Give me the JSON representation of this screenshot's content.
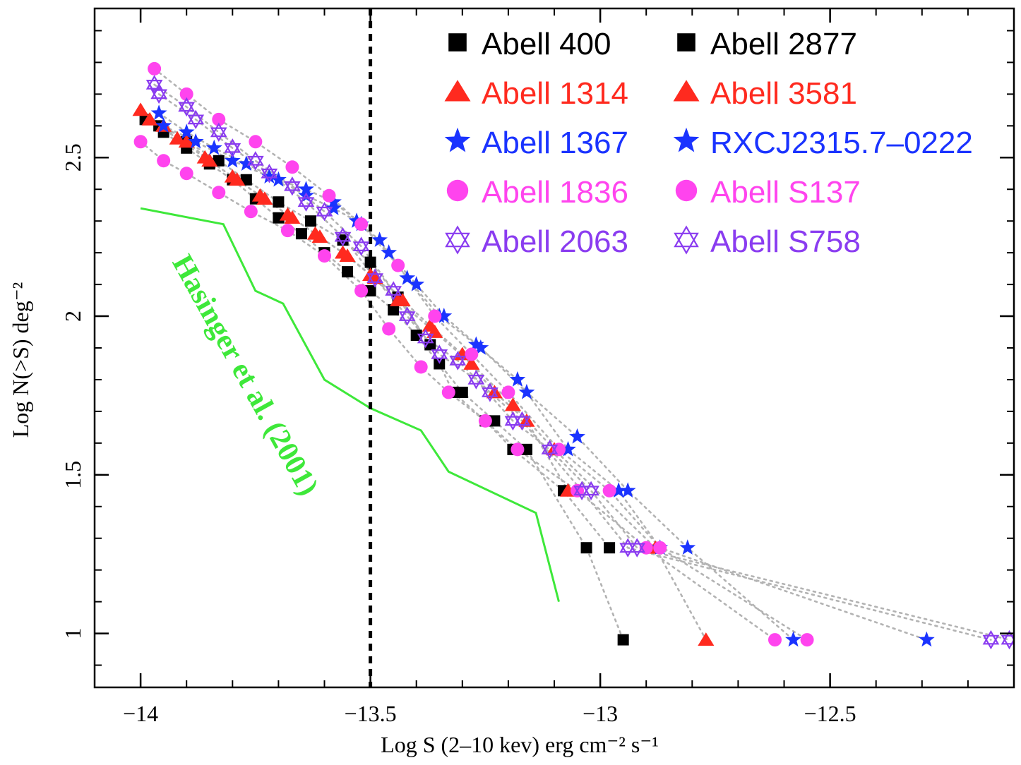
{
  "chart_data": {
    "type": "scatter",
    "title": "",
    "xlabel": "Log S (2–10 kev) erg cm⁻² s⁻¹",
    "ylabel": "Log N(>S) deg⁻²",
    "xlim": [
      -14.1,
      -12.1
    ],
    "ylim": [
      0.83,
      2.97
    ],
    "xticks": [
      -14,
      -13.5,
      -13,
      -12.5
    ],
    "xtick_labels": [
      "−14",
      "−13.5",
      "−13",
      "−12.5"
    ],
    "yticks": [
      1,
      1.5,
      2,
      2.5
    ],
    "ytick_labels": [
      "1",
      "1.5",
      "2",
      "2.5"
    ],
    "legend_position": "top-right",
    "series": [
      {
        "name": "Abell 400",
        "marker": "square",
        "color": "#000000",
        "x": [
          -13.99,
          -13.95,
          -13.9,
          -13.85,
          -13.8,
          -13.75,
          -13.7,
          -13.65,
          -13.6,
          -13.55,
          -13.5,
          -13.45,
          -13.4,
          -13.35,
          -13.3,
          -13.23,
          -13.16,
          -13.03,
          -12.95
        ],
        "y": [
          2.62,
          2.58,
          2.53,
          2.48,
          2.43,
          2.37,
          2.31,
          2.26,
          2.2,
          2.14,
          2.08,
          2.02,
          1.94,
          1.85,
          1.76,
          1.67,
          1.58,
          1.27,
          0.98
        ]
      },
      {
        "name": "Abell 2877",
        "marker": "square",
        "color": "#000000",
        "x": [
          -13.96,
          -13.9,
          -13.83,
          -13.77,
          -13.7,
          -13.63,
          -13.56,
          -13.5,
          -13.44,
          -13.37,
          -13.32,
          -13.25,
          -13.19,
          -13.08,
          -12.98
        ],
        "y": [
          2.6,
          2.55,
          2.49,
          2.43,
          2.36,
          2.3,
          2.24,
          2.17,
          2.06,
          1.91,
          1.76,
          1.67,
          1.58,
          1.45,
          1.27
        ]
      },
      {
        "name": "Abell 1314",
        "marker": "triangle",
        "color": "#ff2a1f",
        "x": [
          -14.0,
          -13.95,
          -13.9,
          -13.85,
          -13.79,
          -13.73,
          -13.67,
          -13.61,
          -13.55,
          -13.49,
          -13.43,
          -13.37,
          -13.3,
          -13.23,
          -13.16,
          -13.07
        ],
        "y": [
          2.65,
          2.6,
          2.55,
          2.49,
          2.43,
          2.37,
          2.31,
          2.25,
          2.19,
          2.12,
          2.05,
          1.97,
          1.88,
          1.76,
          1.67,
          1.45
        ]
      },
      {
        "name": "Abell 3581",
        "marker": "triangle",
        "color": "#ff2a1f",
        "x": [
          -13.98,
          -13.92,
          -13.86,
          -13.8,
          -13.74,
          -13.68,
          -13.62,
          -13.56,
          -13.5,
          -13.44,
          -13.36,
          -13.28,
          -13.19,
          -13.1,
          -12.88,
          -12.77
        ],
        "y": [
          2.62,
          2.56,
          2.5,
          2.44,
          2.38,
          2.32,
          2.26,
          2.2,
          2.13,
          2.05,
          1.95,
          1.85,
          1.72,
          1.58,
          1.27,
          0.98
        ]
      },
      {
        "name": "Abell 1367",
        "marker": "star",
        "color": "#1a33ff",
        "x": [
          -13.96,
          -13.9,
          -13.84,
          -13.77,
          -13.7,
          -13.64,
          -13.58,
          -13.53,
          -13.48,
          -13.42,
          -13.35,
          -13.27,
          -13.18,
          -13.07,
          -12.96,
          -12.87,
          -12.29
        ],
        "y": [
          2.64,
          2.58,
          2.53,
          2.48,
          2.43,
          2.38,
          2.34,
          2.3,
          2.24,
          2.12,
          2.0,
          1.91,
          1.8,
          1.58,
          1.45,
          1.27,
          0.98
        ]
      },
      {
        "name": "RXCJ2315.7–0222",
        "marker": "star",
        "color": "#1a33ff",
        "x": [
          -13.95,
          -13.88,
          -13.8,
          -13.72,
          -13.64,
          -13.58,
          -13.52,
          -13.46,
          -13.4,
          -13.34,
          -13.26,
          -13.16,
          -13.05,
          -12.94,
          -12.81,
          -12.58
        ],
        "y": [
          2.6,
          2.55,
          2.49,
          2.44,
          2.4,
          2.36,
          2.29,
          2.2,
          2.1,
          2.0,
          1.9,
          1.76,
          1.62,
          1.45,
          1.27,
          0.98
        ]
      },
      {
        "name": "Abell 1836",
        "marker": "circle",
        "color": "#ff44ee",
        "x": [
          -14.0,
          -13.95,
          -13.9,
          -13.83,
          -13.76,
          -13.68,
          -13.6,
          -13.52,
          -13.46,
          -13.39,
          -13.33,
          -13.25,
          -13.18,
          -13.05,
          -12.9,
          -12.62
        ],
        "y": [
          2.55,
          2.49,
          2.45,
          2.39,
          2.33,
          2.27,
          2.19,
          2.08,
          1.96,
          1.84,
          1.76,
          1.67,
          1.58,
          1.45,
          1.27,
          0.98
        ]
      },
      {
        "name": "Abell S137",
        "marker": "circle",
        "color": "#ff44ee",
        "x": [
          -13.97,
          -13.9,
          -13.83,
          -13.75,
          -13.67,
          -13.59,
          -13.52,
          -13.44,
          -13.36,
          -13.28,
          -13.2,
          -13.09,
          -12.98,
          -12.87,
          -12.55
        ],
        "y": [
          2.78,
          2.7,
          2.62,
          2.55,
          2.47,
          2.38,
          2.29,
          2.16,
          2.0,
          1.88,
          1.76,
          1.58,
          1.45,
          1.27,
          0.98
        ]
      },
      {
        "name": "Abell 2063",
        "marker": "hexagram",
        "color": "#8a3cf0",
        "x": [
          -13.97,
          -13.9,
          -13.83,
          -13.75,
          -13.67,
          -13.6,
          -13.52,
          -13.45,
          -13.38,
          -13.31,
          -13.24,
          -13.17,
          -13.04,
          -12.94,
          -12.15
        ],
        "y": [
          2.73,
          2.66,
          2.58,
          2.49,
          2.41,
          2.33,
          2.22,
          2.08,
          1.93,
          1.86,
          1.76,
          1.67,
          1.45,
          1.27,
          0.98
        ]
      },
      {
        "name": "Abell S758",
        "marker": "hexagram",
        "color": "#8a3cf0",
        "x": [
          -13.96,
          -13.88,
          -13.8,
          -13.72,
          -13.64,
          -13.56,
          -13.49,
          -13.42,
          -13.35,
          -13.27,
          -13.19,
          -13.11,
          -13.02,
          -12.92,
          -12.11
        ],
        "y": [
          2.7,
          2.62,
          2.53,
          2.45,
          2.36,
          2.25,
          2.12,
          2.0,
          1.88,
          1.8,
          1.67,
          1.58,
          1.45,
          1.27,
          0.98
        ]
      }
    ],
    "reference_line": {
      "name": "Hasinger et al. (2001)",
      "color": "#3ee83a",
      "x": [
        -14.0,
        -13.82,
        -13.75,
        -13.69,
        -13.6,
        -13.5,
        -13.39,
        -13.33,
        -13.14,
        -13.09
      ],
      "y": [
        2.34,
        2.29,
        2.08,
        2.04,
        1.8,
        1.71,
        1.64,
        1.51,
        1.38,
        1.1
      ]
    },
    "vertical_line": {
      "x": -13.5,
      "style": "dashed",
      "color": "#000000"
    },
    "annotation": {
      "text": "Hasinger et al. (2001)",
      "color": "#3ee83a",
      "x": -13.79,
      "y": 1.8
    }
  }
}
